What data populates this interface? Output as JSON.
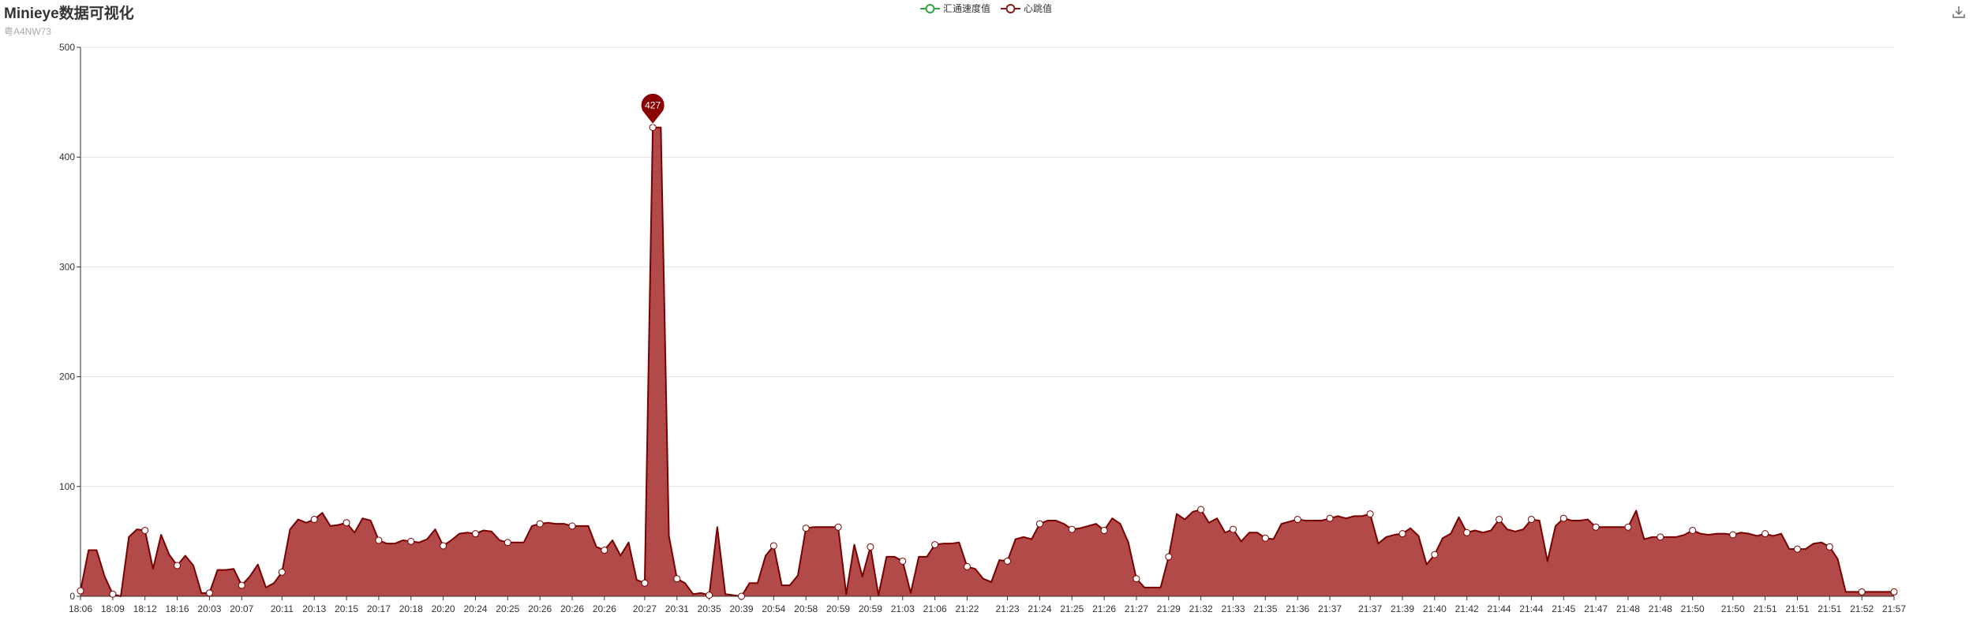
{
  "title": "Minieye数据可视化",
  "subtitle": "粤A4NW73",
  "legend": [
    {
      "name": "汇通速度值",
      "color": "#2fa543",
      "icon": "line-circle-icon"
    },
    {
      "name": "心跳值",
      "color": "#8b1a1a",
      "icon": "line-circle-icon"
    }
  ],
  "toolbar": {
    "download_icon": "download-icon"
  },
  "colors": {
    "line": "#7a0000",
    "area": "#a52a2a",
    "marker": "#8b0000",
    "grid": "#e0e0e0",
    "axis": "#333333"
  },
  "chart_data": {
    "type": "area",
    "ylim": [
      0,
      500
    ],
    "yticks": [
      0,
      100,
      200,
      300,
      400,
      500
    ],
    "grid": true,
    "legend_position": "top-center",
    "xlabels": [
      "18:06",
      "18:09",
      "18:12",
      "18:16",
      "20:03",
      "20:07",
      "20:11",
      "20:13",
      "20:15",
      "20:17",
      "20:18",
      "20:20",
      "20:24",
      "20:25",
      "20:26",
      "20:26",
      "20:26",
      "20:27",
      "20:31",
      "20:35",
      "20:39",
      "20:54",
      "20:58",
      "20:59",
      "20:59",
      "21:03",
      "21:06",
      "21:22",
      "21:23",
      "21:24",
      "21:25",
      "21:26",
      "21:27",
      "21:29",
      "21:32",
      "21:33",
      "21:35",
      "21:36",
      "21:37",
      "21:37",
      "21:39",
      "21:40",
      "21:42",
      "21:44",
      "21:44",
      "21:45",
      "21:47",
      "21:48",
      "21:48",
      "21:50",
      "21:50",
      "21:51",
      "21:51",
      "21:51",
      "21:52",
      "21:57"
    ],
    "series": [
      {
        "name": "汇通速度值",
        "values": []
      },
      {
        "name": "心跳值",
        "values": [
          5,
          42,
          42,
          18,
          2,
          0,
          54,
          61,
          60,
          25,
          56,
          38,
          28,
          37,
          28,
          3,
          3,
          24,
          24,
          25,
          10,
          18,
          29,
          8,
          12,
          22,
          61,
          70,
          67,
          70,
          76,
          64,
          65,
          67,
          58,
          71,
          69,
          51,
          48,
          48,
          51,
          50,
          49,
          52,
          61,
          46,
          51,
          57,
          58,
          57,
          60,
          59,
          51,
          49,
          49,
          49,
          64,
          66,
          67,
          66,
          66,
          64,
          64,
          64,
          45,
          42,
          51,
          37,
          49,
          15,
          12,
          427,
          427,
          55,
          16,
          12,
          2,
          3,
          1,
          63,
          2,
          1,
          0,
          12,
          12,
          37,
          46,
          10,
          10,
          19,
          62,
          63,
          63,
          63,
          63,
          2,
          47,
          18,
          45,
          1,
          36,
          36,
          32,
          3,
          36,
          36,
          47,
          48,
          48,
          49,
          27,
          25,
          16,
          13,
          33,
          32,
          52,
          54,
          52,
          66,
          69,
          69,
          66,
          61,
          62,
          64,
          66,
          60,
          71,
          66,
          49,
          16,
          8,
          8,
          8,
          36,
          75,
          70,
          77,
          79,
          67,
          71,
          58,
          61,
          50,
          58,
          58,
          53,
          52,
          66,
          68,
          70,
          69,
          69,
          69,
          71,
          73,
          71,
          73,
          73,
          75,
          48,
          54,
          56,
          57,
          62,
          55,
          29,
          38,
          53,
          57,
          72,
          58,
          60,
          58,
          60,
          70,
          61,
          59,
          61,
          70,
          69,
          32,
          64,
          71,
          69,
          69,
          70,
          63,
          63,
          63,
          63,
          63,
          78,
          52,
          54,
          54,
          54,
          54,
          56,
          60,
          57,
          56,
          57,
          57,
          56,
          58,
          57,
          55,
          57,
          55,
          57,
          43,
          43,
          43,
          48,
          49,
          45,
          34,
          4,
          4,
          4,
          4,
          4,
          4,
          4
        ]
      }
    ],
    "markpoint": {
      "label": "427",
      "series": "心跳值"
    }
  }
}
